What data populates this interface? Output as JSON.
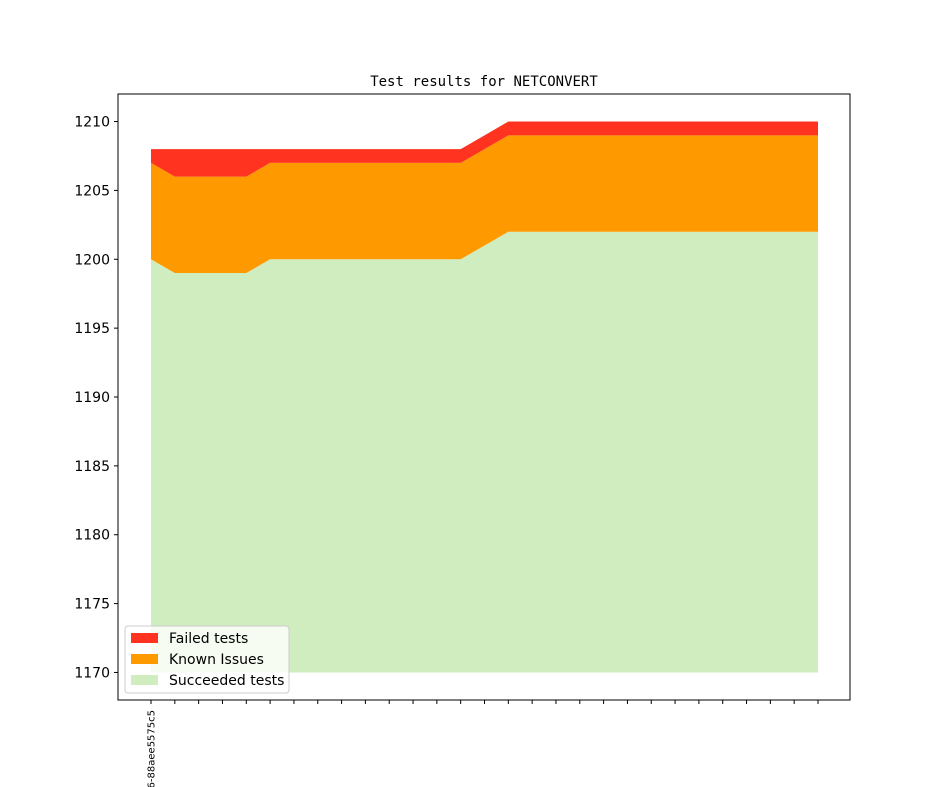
{
  "chart_data": {
    "type": "area",
    "title": "Test results for NETCONVERT",
    "xlabel": "",
    "ylabel": "",
    "x_count": 29,
    "xtick_labels": [
      "6-88aee5575c5"
    ],
    "ylim": [
      1168,
      1212
    ],
    "yticks": [
      1170,
      1175,
      1180,
      1185,
      1190,
      1195,
      1200,
      1205,
      1210
    ],
    "baseline": 1170,
    "grid": false,
    "legend_position": "lower-left",
    "series": [
      {
        "name": "Succeeded tests",
        "color": "#cfedbf",
        "values": [
          1200,
          1199,
          1199,
          1199,
          1199,
          1200,
          1200,
          1200,
          1200,
          1200,
          1200,
          1200,
          1200,
          1200,
          1201,
          1202,
          1202,
          1202,
          1202,
          1202,
          1202,
          1202,
          1202,
          1202,
          1202,
          1202,
          1202,
          1202,
          1202
        ]
      },
      {
        "name": "Known Issues",
        "color": "#ff9900",
        "values": [
          7,
          7,
          7,
          7,
          7,
          7,
          7,
          7,
          7,
          7,
          7,
          7,
          7,
          7,
          7,
          7,
          7,
          7,
          7,
          7,
          7,
          7,
          7,
          7,
          7,
          7,
          7,
          7,
          7
        ]
      },
      {
        "name": "Failed tests",
        "color": "#ff3320",
        "values": [
          1,
          2,
          2,
          2,
          2,
          1,
          1,
          1,
          1,
          1,
          1,
          1,
          1,
          1,
          1,
          1,
          1,
          1,
          1,
          1,
          1,
          1,
          1,
          1,
          1,
          1,
          1,
          1,
          1
        ]
      }
    ],
    "legend_order": [
      "Failed tests",
      "Known Issues",
      "Succeeded tests"
    ]
  }
}
